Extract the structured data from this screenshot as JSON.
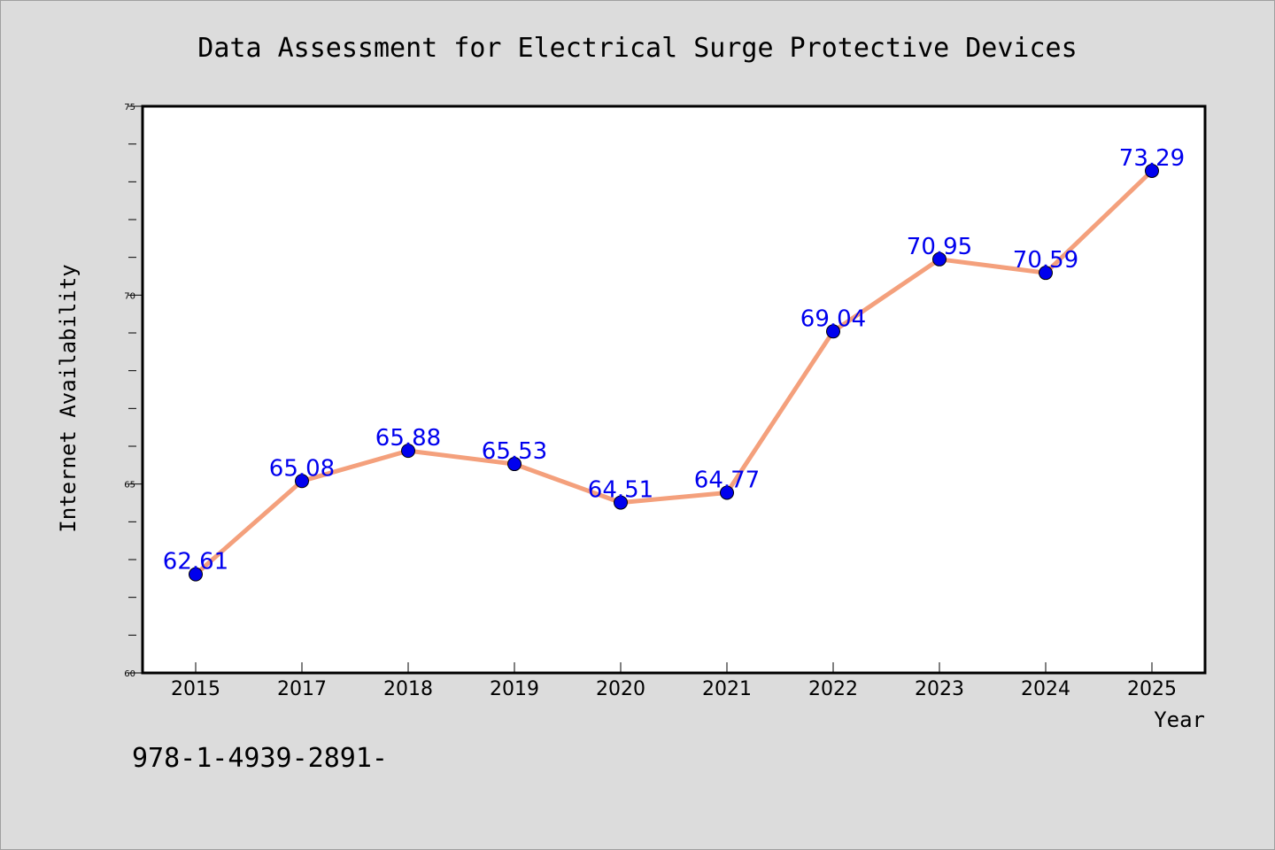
{
  "chart_data": {
    "type": "line",
    "title": "Data Assessment for Electrical Surge Protective Devices",
    "xlabel": "Year",
    "ylabel": "Internet Availability",
    "categories": [
      "2015",
      "2017",
      "2018",
      "2019",
      "2020",
      "2021",
      "2022",
      "2023",
      "2024",
      "2025"
    ],
    "series": [
      {
        "values": [
          62.61,
          65.08,
          65.88,
          65.53,
          64.51,
          64.77,
          69.04,
          70.95,
          70.59,
          73.29
        ]
      }
    ],
    "data_labels": [
      "62.61",
      "65.08",
      "65.88",
      "65.53",
      "64.51",
      "64.77",
      "69.04",
      "70.95",
      "70.59",
      "73.29"
    ],
    "ylim": [
      60,
      75
    ],
    "y_ticks": [
      60,
      65,
      70,
      75
    ],
    "y_tick_labels": [
      "60",
      "65",
      "70",
      "75"
    ],
    "grid": false,
    "colors": {
      "line": "#f4a07c",
      "marker": "#0000ee",
      "label": "#0000ee",
      "background": "#dcdcdc",
      "plot_background": "#ffffff"
    }
  },
  "footer": {
    "text": "978-1-4939-2891-"
  }
}
